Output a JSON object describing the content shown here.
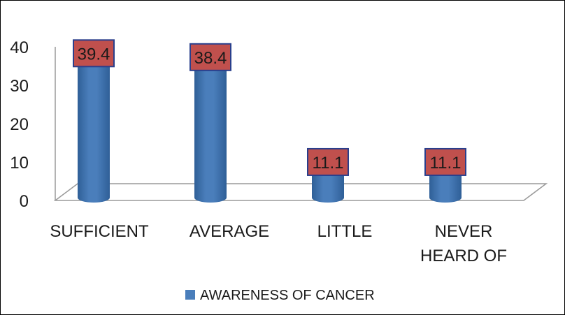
{
  "chart_data": {
    "type": "bar",
    "style": "3d-cylinder",
    "categories": [
      "SUFFICIENT",
      "AVERAGE",
      "LITTLE",
      "NEVER HEARD OF"
    ],
    "category_lines": [
      [
        "SUFFICIENT"
      ],
      [
        "AVERAGE"
      ],
      [
        "LITTLE"
      ],
      [
        "NEVER",
        "HEARD OF"
      ]
    ],
    "series": [
      {
        "name": "AWARENESS OF CANCER",
        "values": [
          39.4,
          38.4,
          11.1,
          11.1
        ]
      }
    ],
    "data_labels": [
      "39.4",
      "38.4",
      "11.1",
      "11.1"
    ],
    "y_ticks": [
      "0",
      "10",
      "20",
      "30",
      "40"
    ],
    "ylim": [
      0,
      40
    ],
    "grid": false,
    "legend": "bottom",
    "colors": {
      "bar": "#4a7ebb",
      "bar_dark": "#2f5f97",
      "bar_top": "#8db4e2",
      "label_fill": "#c0504d",
      "label_border": "#2a3f8c",
      "walls": "#9a9a9a"
    }
  }
}
